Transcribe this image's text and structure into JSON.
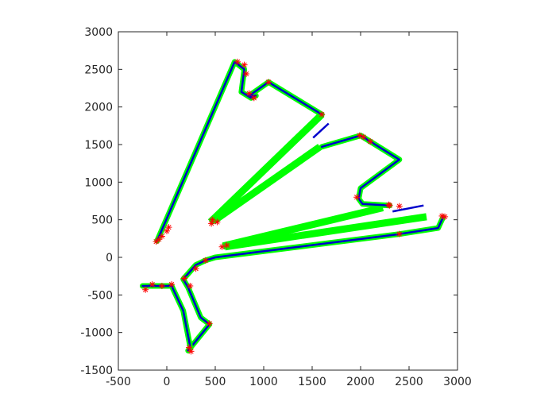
{
  "chart_data": {
    "type": "line",
    "title": "",
    "xlabel": "",
    "ylabel": "",
    "xlim": [
      -500,
      3000
    ],
    "ylim": [
      -1500,
      3000
    ],
    "xticks": [
      -500,
      0,
      500,
      1000,
      1500,
      2000,
      2500,
      3000
    ],
    "yticks": [
      -1500,
      -1000,
      -500,
      0,
      500,
      1000,
      1500,
      2000,
      2500,
      3000
    ],
    "grid": false,
    "legend": "none",
    "colors": {
      "path_outer": "#00FF00",
      "path_inner": "#0000CC",
      "markers": "#FF0000",
      "connectors": "#00FF00",
      "segments": "#0000CC"
    },
    "series": [
      {
        "style": "path",
        "x": [
          -100,
          700,
          800,
          770,
          870,
          920,
          850,
          1050,
          1600
        ],
        "y": [
          220,
          2600,
          2500,
          2200,
          2120,
          2150,
          2150,
          2330,
          1900
        ]
      },
      {
        "style": "path",
        "x": [
          1600,
          2000,
          2400,
          2000,
          1980,
          2020,
          2300
        ],
        "y": [
          1470,
          1620,
          1300,
          920,
          780,
          710,
          690
        ]
      },
      {
        "style": "path",
        "x": [
          2850,
          2800,
          2400,
          500,
          400,
          300,
          170,
          220,
          350,
          440,
          220
        ],
        "y": [
          530,
          390,
          310,
          0,
          -40,
          -100,
          -290,
          -400,
          -800,
          -890,
          -1240
        ]
      },
      {
        "style": "path",
        "x": [
          -250,
          50,
          170,
          240
        ],
        "y": [
          -380,
          -380,
          -710,
          -1180
        ]
      },
      {
        "style": "markers",
        "x": [
          -110,
          -80,
          -50,
          0,
          20,
          730,
          800,
          820,
          850,
          900,
          1050,
          1600,
          1990,
          2030,
          2100,
          2300,
          2400,
          1960,
          2290,
          2840,
          2870,
          2400,
          460,
          470,
          520,
          570,
          620,
          400,
          300,
          180,
          240,
          440,
          230,
          250,
          -220,
          -150,
          -50,
          50
        ],
        "y": [
          210,
          240,
          280,
          350,
          400,
          2600,
          2560,
          2440,
          2180,
          2120,
          2330,
          1900,
          1620,
          1600,
          1540,
          690,
          680,
          800,
          700,
          550,
          540,
          310,
          450,
          500,
          470,
          140,
          160,
          -40,
          -150,
          -280,
          -380,
          -880,
          -1200,
          -1250,
          -430,
          -360,
          -380,
          -360
        ]
      },
      {
        "style": "connectors",
        "segments": [
          [
            1600,
            1900,
            450,
            470
          ],
          [
            1580,
            1470,
            480,
            480
          ],
          [
            2230,
            660,
            580,
            150
          ],
          [
            2680,
            540,
            600,
            140
          ]
        ]
      },
      {
        "style": "segments",
        "segments": [
          [
            1510,
            1590,
            1670,
            1780
          ],
          [
            2330,
            610,
            2650,
            690
          ]
        ]
      }
    ]
  }
}
